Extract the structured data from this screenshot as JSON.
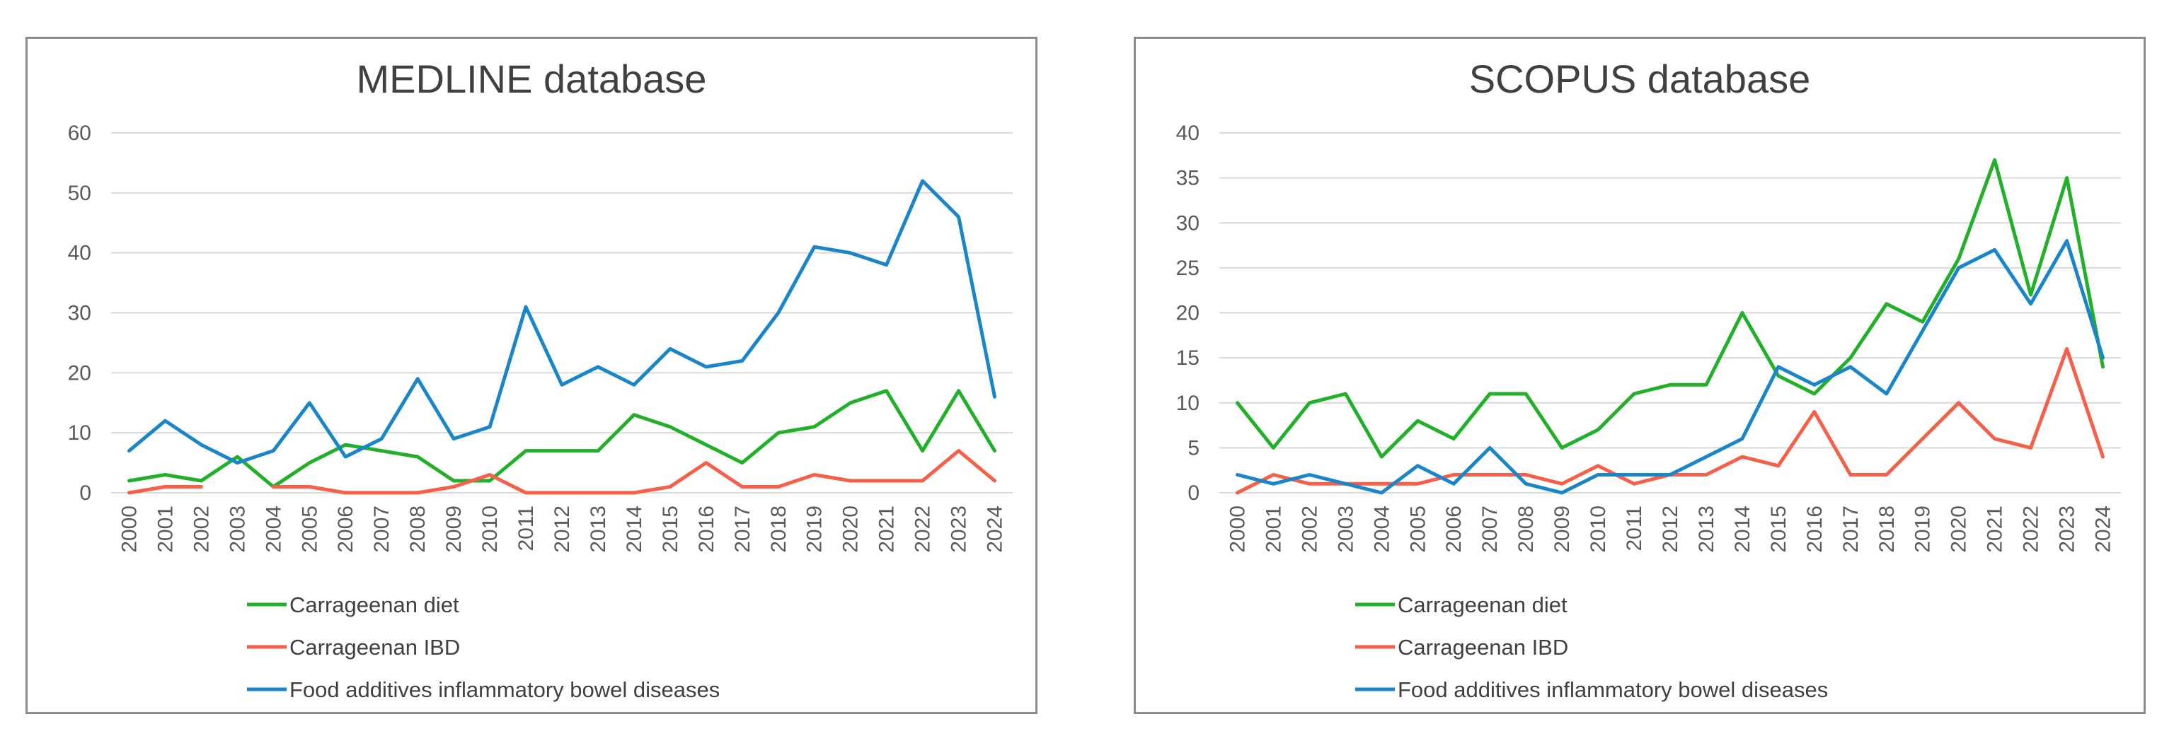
{
  "colors": {
    "carrageenan_diet": "#22b02a",
    "carrageenan_ibd": "#f4604a",
    "food_additives_ibd": "#1a86c8"
  },
  "legend": {
    "carrageenan_diet": "Carrageenan diet",
    "carrageenan_ibd": "Carrageenan IBD",
    "food_additives_ibd": "Food additives inflammatory bowel diseases"
  },
  "chart_data": [
    {
      "type": "line",
      "title": "MEDLINE database",
      "xlabel": "",
      "ylabel": "",
      "x": [
        "2000",
        "2001",
        "2002",
        "2003",
        "2004",
        "2005",
        "2006",
        "2007",
        "2008",
        "2009",
        "2010",
        "2011",
        "2012",
        "2013",
        "2014",
        "2015",
        "2016",
        "2017",
        "2018",
        "2019",
        "2020",
        "2021",
        "2022",
        "2023",
        "2024"
      ],
      "ylim": [
        0,
        60
      ],
      "yticks": [
        "0",
        "10",
        "20",
        "30",
        "40",
        "50",
        "60"
      ],
      "grid": true,
      "legend_position": "bottom",
      "series": [
        {
          "name": "Carrageenan diet",
          "key": "carrageenan_diet",
          "values": [
            2,
            3,
            2,
            6,
            1,
            5,
            8,
            7,
            6,
            2,
            2,
            7,
            7,
            7,
            13,
            11,
            8,
            5,
            10,
            11,
            15,
            17,
            7,
            17,
            7
          ]
        },
        {
          "name": "Carrageenan IBD",
          "key": "carrageenan_ibd",
          "values": [
            0,
            1,
            1,
            null,
            1,
            1,
            0,
            0,
            0,
            1,
            3,
            0,
            0,
            0,
            0,
            1,
            5,
            1,
            1,
            3,
            2,
            2,
            2,
            7,
            2
          ]
        },
        {
          "name": "Food additives inflammatory bowel diseases",
          "key": "food_additives_ibd",
          "values": [
            7,
            12,
            8,
            5,
            7,
            15,
            6,
            9,
            19,
            9,
            11,
            31,
            18,
            21,
            18,
            24,
            21,
            22,
            30,
            41,
            40,
            38,
            52,
            46,
            16
          ]
        }
      ]
    },
    {
      "type": "line",
      "title": "SCOPUS database",
      "xlabel": "",
      "ylabel": "",
      "x": [
        "2000",
        "2001",
        "2002",
        "2003",
        "2004",
        "2005",
        "2006",
        "2007",
        "2008",
        "2009",
        "2010",
        "2011",
        "2012",
        "2013",
        "2014",
        "2015",
        "2016",
        "2017",
        "2018",
        "2019",
        "2020",
        "2021",
        "2022",
        "2023",
        "2024"
      ],
      "ylim": [
        0,
        40
      ],
      "yticks": [
        "0",
        "5",
        "10",
        "15",
        "20",
        "25",
        "30",
        "35",
        "40"
      ],
      "grid": true,
      "legend_position": "bottom",
      "series": [
        {
          "name": "Carrageenan diet",
          "key": "carrageenan_diet",
          "values": [
            10,
            5,
            10,
            11,
            4,
            8,
            6,
            11,
            11,
            5,
            7,
            11,
            12,
            12,
            20,
            13,
            11,
            15,
            21,
            19,
            26,
            37,
            22,
            35,
            14
          ]
        },
        {
          "name": "Carrageenan IBD",
          "key": "carrageenan_ibd",
          "values": [
            0,
            2,
            1,
            1,
            1,
            1,
            2,
            2,
            2,
            1,
            3,
            1,
            2,
            2,
            4,
            3,
            9,
            2,
            2,
            6,
            10,
            6,
            5,
            16,
            4
          ]
        },
        {
          "name": "Food additives inflammatory bowel diseases",
          "key": "food_additives_ibd",
          "values": [
            2,
            1,
            2,
            1,
            0,
            3,
            1,
            5,
            1,
            0,
            2,
            2,
            2,
            4,
            6,
            14,
            12,
            14,
            11,
            18,
            25,
            27,
            21,
            28,
            15
          ]
        }
      ]
    }
  ]
}
